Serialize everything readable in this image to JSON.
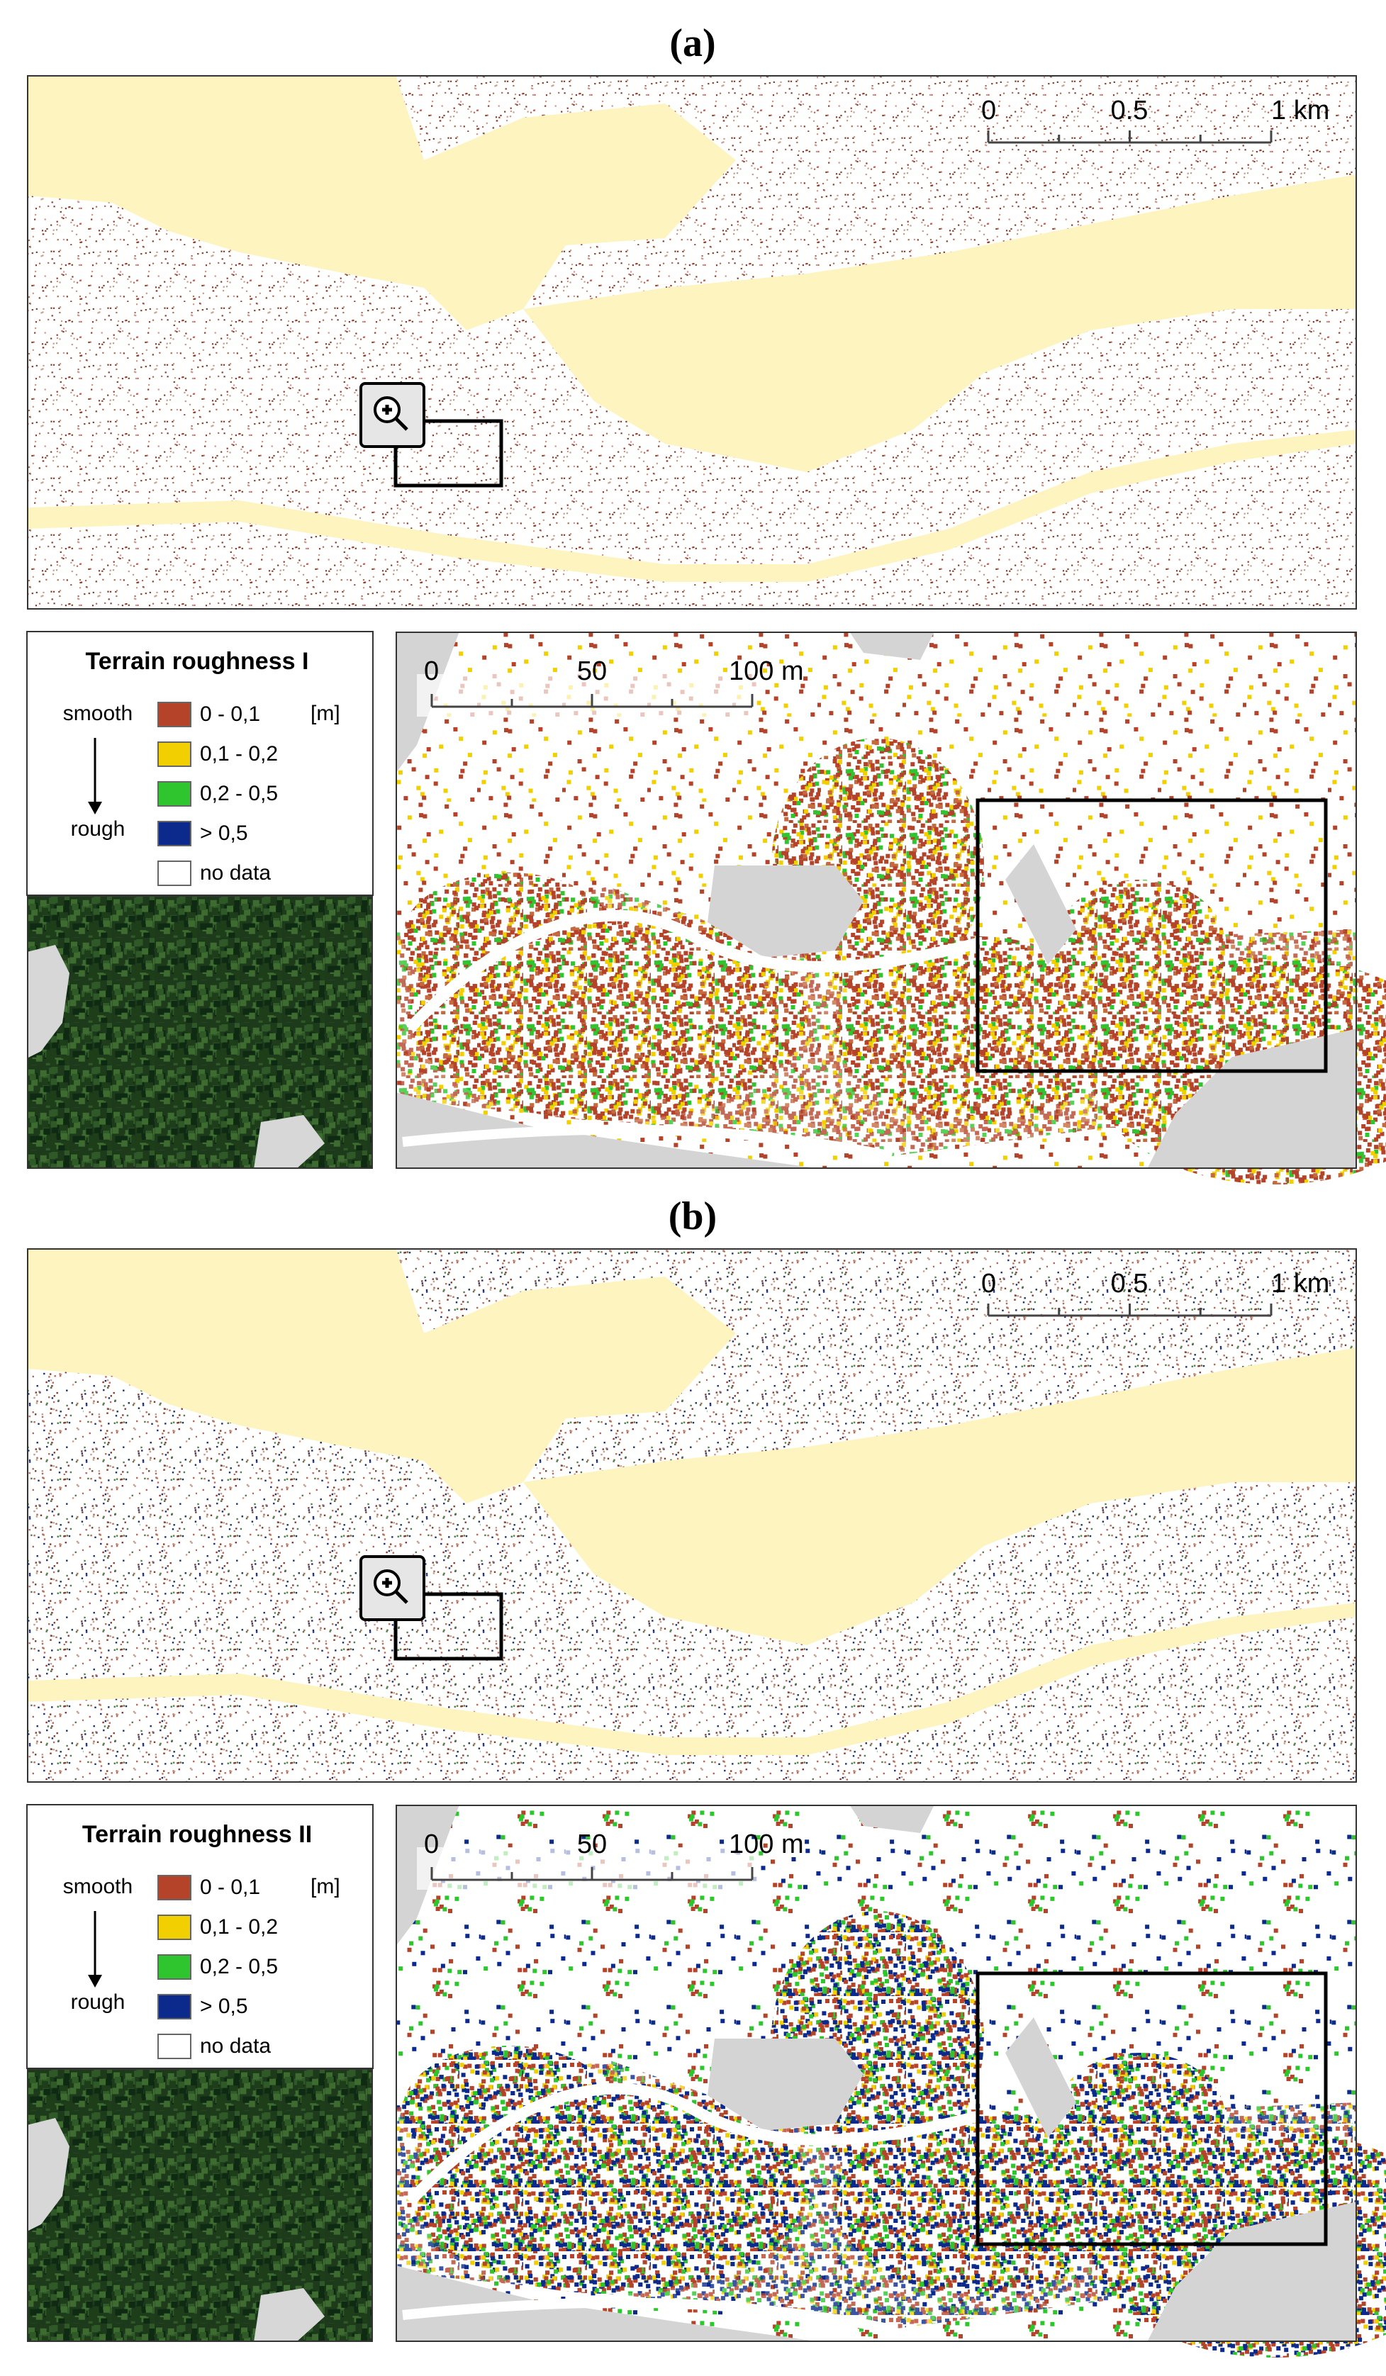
{
  "panels": [
    {
      "label": "(a)",
      "overview": {
        "scale": [
          "0",
          "0.5",
          "1 km"
        ]
      },
      "legend": {
        "title": "Terrain roughness I",
        "smooth": "smooth",
        "rough": "rough",
        "unit": "[m]",
        "items": [
          {
            "label": "0 - 0,1",
            "color": "#b5432a"
          },
          {
            "label": "0,1 - 0,2",
            "color": "#f2cf00"
          },
          {
            "label": "0,2 - 0,5",
            "color": "#2ec52e"
          },
          {
            "label": "> 0,5",
            "color": "#0b2a8c"
          },
          {
            "label": "no data",
            "color": "#ffffff"
          }
        ]
      },
      "zoom": {
        "scale": [
          "0",
          "50",
          "100 m"
        ]
      }
    },
    {
      "label": "(b)",
      "overview": {
        "scale": [
          "0",
          "0.5",
          "1 km"
        ]
      },
      "legend": {
        "title": "Terrain roughness II",
        "smooth": "smooth",
        "rough": "rough",
        "unit": "[m]",
        "items": [
          {
            "label": "0 - 0,1",
            "color": "#b5432a"
          },
          {
            "label": "0,1 - 0,2",
            "color": "#f2cf00"
          },
          {
            "label": "0,2 - 0,5",
            "color": "#2ec52e"
          },
          {
            "label": "> 0,5",
            "color": "#0b2a8c"
          },
          {
            "label": "no data",
            "color": "#ffffff"
          }
        ]
      },
      "zoom": {
        "scale": [
          "0",
          "50",
          "100 m"
        ]
      }
    }
  ]
}
